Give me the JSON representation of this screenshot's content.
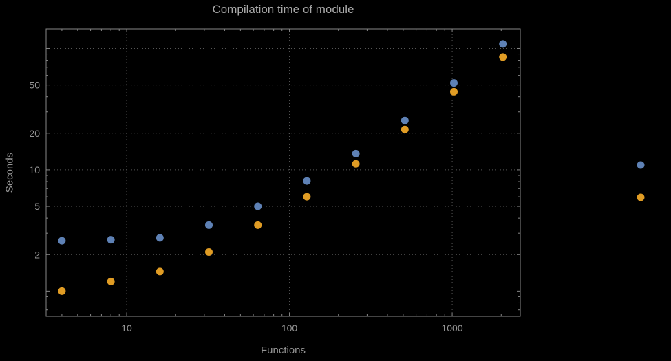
{
  "window": {
    "background": "#000000"
  },
  "colors": {
    "background": "#000000",
    "frame": "#878787",
    "grid": "#575757",
    "tick_label": "#959595",
    "axis_label": "#959595",
    "title": "#a8a8a8"
  },
  "chart_data": {
    "type": "scatter",
    "title": "Compilation time of module",
    "xlabel": "Functions",
    "ylabel": "Seconds",
    "x_scale": "log",
    "y_scale": "log",
    "xlim": [
      3.2,
      2620
    ],
    "ylim": [
      0.62,
      145
    ],
    "grid": true,
    "x_ticks": [
      {
        "value": 10,
        "label": "10"
      },
      {
        "value": 100,
        "label": "100"
      },
      {
        "value": 1000,
        "label": "1000"
      }
    ],
    "y_ticks": [
      {
        "value": 2,
        "label": "2"
      },
      {
        "value": 5,
        "label": "5"
      },
      {
        "value": 10,
        "label": "10"
      },
      {
        "value": 20,
        "label": "20"
      },
      {
        "value": 50,
        "label": "50"
      }
    ],
    "y_unlabeled_ticks": [
      1,
      100
    ],
    "x_gridlines": [
      10,
      100,
      1000
    ],
    "y_gridlines": [
      2,
      5,
      10,
      20,
      50,
      100
    ],
    "series": [
      {
        "name": "series-1",
        "color": "#5e81b5",
        "marker": "circle",
        "points": [
          [
            4,
            2.6
          ],
          [
            8,
            2.65
          ],
          [
            16,
            2.75
          ],
          [
            32,
            3.5
          ],
          [
            64,
            5.0
          ],
          [
            128,
            8.1
          ],
          [
            256,
            13.6
          ],
          [
            512,
            25.5
          ],
          [
            1024,
            52
          ],
          [
            2048,
            109
          ]
        ]
      },
      {
        "name": "series-2",
        "color": "#e09c24",
        "marker": "circle",
        "points": [
          [
            4,
            1.0
          ],
          [
            8,
            1.2
          ],
          [
            16,
            1.45
          ],
          [
            32,
            2.1
          ],
          [
            64,
            3.5
          ],
          [
            128,
            6.0
          ],
          [
            256,
            11.2
          ],
          [
            512,
            21.5
          ],
          [
            1024,
            44
          ],
          [
            2048,
            85
          ]
        ]
      }
    ],
    "legend": {
      "position": "right",
      "items": [
        {
          "color": "#5e81b5",
          "label": ""
        },
        {
          "color": "#e09c24",
          "label": ""
        }
      ]
    }
  }
}
